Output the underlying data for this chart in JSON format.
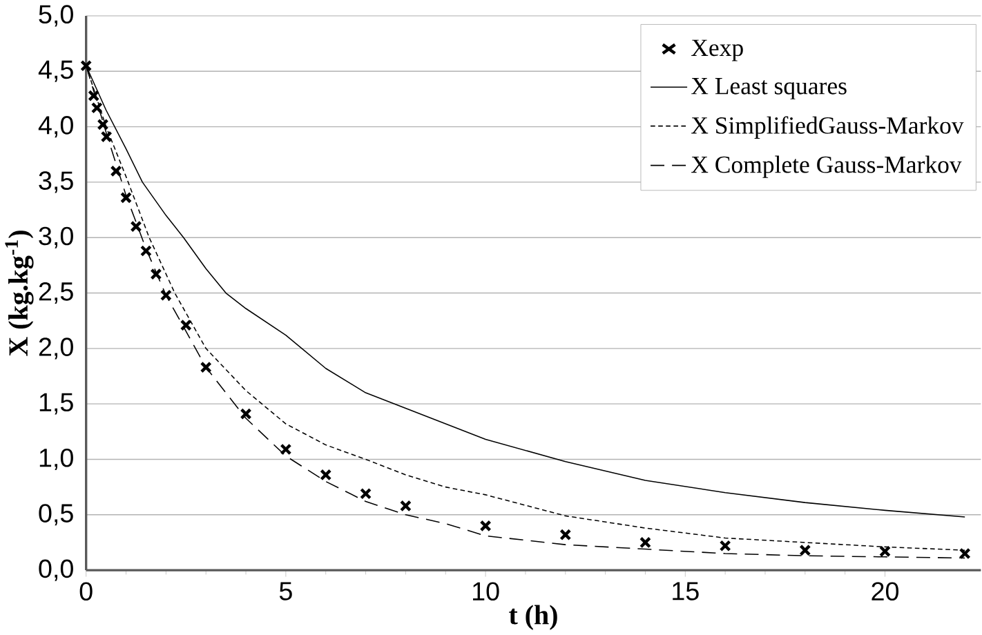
{
  "chart_data": {
    "type": "line",
    "xlabel": "t (h)",
    "ylabel": "X (kg.kg$^{-1}$)",
    "xlim": [
      0,
      22.4
    ],
    "xticks": [
      0,
      5,
      10,
      15,
      20
    ],
    "ylim": [
      0,
      5
    ],
    "yticks": [
      {
        "value": 0,
        "label": "0,0"
      },
      {
        "value": 0.5,
        "label": "0,5"
      },
      {
        "value": 1,
        "label": "1,0"
      },
      {
        "value": 1.5,
        "label": "1,5"
      },
      {
        "value": 2,
        "label": "2,0"
      },
      {
        "value": 2.5,
        "label": "2,5"
      },
      {
        "value": 3,
        "label": "3,0"
      },
      {
        "value": 3.5,
        "label": "3,5"
      },
      {
        "value": 4,
        "label": "4,0"
      },
      {
        "value": 4.5,
        "label": "4,5"
      },
      {
        "value": 5,
        "label": "5,0"
      }
    ],
    "grid": "y",
    "legend": "top right",
    "series": [
      {
        "name": "Xexp",
        "type": "scatter",
        "marker": "cross",
        "color": "#000000",
        "x": [
          0,
          0.19,
          0.27,
          0.42,
          0.51,
          0.75,
          1,
          1.25,
          1.5,
          1.75,
          2,
          2.5,
          3,
          4,
          5,
          6,
          7,
          8,
          10,
          12,
          14,
          16,
          18,
          20,
          22
        ],
        "values": [
          4.55,
          4.28,
          4.17,
          4.02,
          3.91,
          3.6,
          3.36,
          3.1,
          2.88,
          2.67,
          2.48,
          2.21,
          1.83,
          1.41,
          1.09,
          0.86,
          0.69,
          0.58,
          0.4,
          0.32,
          0.25,
          0.22,
          0.18,
          0.17,
          0.15
        ]
      },
      {
        "name": "X Least squares",
        "marker": "none",
        "line_style": "solid",
        "color": "#000000",
        "x": [
          0,
          0.5,
          1,
          1.41,
          2,
          2.44,
          3,
          3.5,
          4,
          5,
          6,
          7,
          8,
          10,
          12,
          14,
          16,
          18,
          20,
          22
        ],
        "values": [
          4.55,
          4.15,
          3.8,
          3.5,
          3.2,
          3.0,
          2.72,
          2.5,
          2.36,
          2.12,
          1.82,
          1.6,
          1.46,
          1.18,
          0.98,
          0.81,
          0.7,
          0.61,
          0.54,
          0.48
        ]
      },
      {
        "name": "X SimplifiedGauss-Markov",
        "marker": "none",
        "line_style": "dotted",
        "color": "#000000",
        "x": [
          0,
          0.5,
          1,
          1.58,
          2.22,
          3,
          4,
          5,
          6,
          7,
          8,
          9,
          10,
          12,
          14,
          16,
          18,
          20,
          22
        ],
        "values": [
          4.55,
          4.0,
          3.55,
          3.0,
          2.5,
          2.0,
          1.62,
          1.32,
          1.13,
          1.0,
          0.86,
          0.75,
          0.68,
          0.49,
          0.38,
          0.29,
          0.25,
          0.21,
          0.18
        ]
      },
      {
        "name": "X Complete Gauss-Markov",
        "marker": "none",
        "line_style": "dashed",
        "color": "#000000",
        "x": [
          0,
          0.5,
          1,
          1.5,
          2,
          3,
          4,
          5,
          6,
          7,
          8,
          9,
          10,
          12,
          14,
          16,
          18,
          20,
          22
        ],
        "values": [
          4.55,
          3.95,
          3.38,
          2.9,
          2.48,
          1.83,
          1.37,
          1.03,
          0.8,
          0.62,
          0.5,
          0.42,
          0.31,
          0.23,
          0.19,
          0.15,
          0.13,
          0.12,
          0.11
        ]
      }
    ]
  }
}
